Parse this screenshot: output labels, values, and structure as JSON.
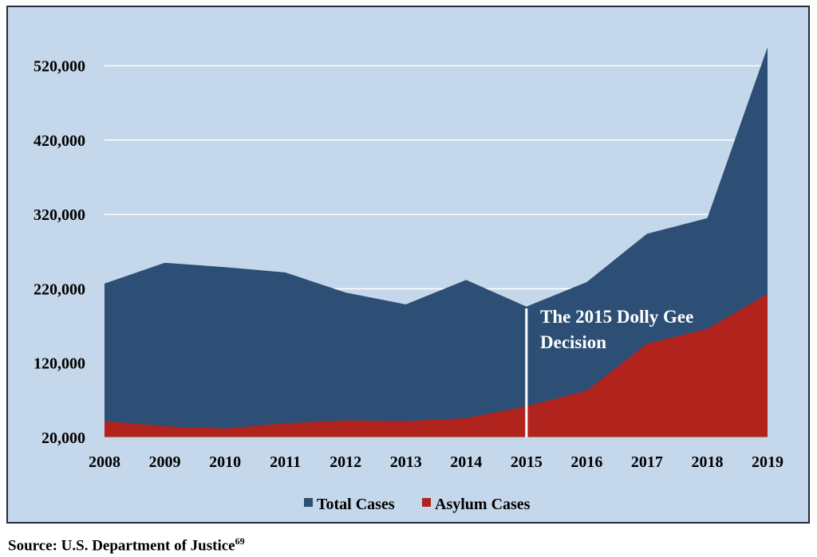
{
  "chart_data": {
    "type": "area",
    "x": [
      "2008",
      "2009",
      "2010",
      "2011",
      "2012",
      "2013",
      "2014",
      "2015",
      "2016",
      "2017",
      "2018",
      "2019"
    ],
    "series": [
      {
        "name": "Total Cases",
        "color": "#2d4f75",
        "values": [
          227000,
          255000,
          249000,
          242000,
          215000,
          199000,
          232000,
          196000,
          229000,
          294000,
          315000,
          545000
        ]
      },
      {
        "name": "Asylum Cases",
        "color": "#b0241d",
        "values": [
          42000,
          35000,
          32000,
          39000,
          43000,
          42000,
          46000,
          62000,
          83000,
          146000,
          166000,
          213000
        ]
      }
    ],
    "yticks": [
      "20,000",
      "120,000",
      "220,000",
      "320,000",
      "420,000",
      "520,000"
    ],
    "ytick_values": [
      20000,
      120000,
      220000,
      320000,
      420000,
      520000
    ],
    "ylim": [
      20000,
      560000
    ],
    "grid": true,
    "legend_position": "bottom",
    "annotation": {
      "x": "2015",
      "line1": "The 2015 Dolly Gee",
      "line2": "Decision",
      "color": "#ffffff"
    }
  },
  "source": {
    "text": "Source: U.S. Department of Justice",
    "footnote": "69"
  }
}
